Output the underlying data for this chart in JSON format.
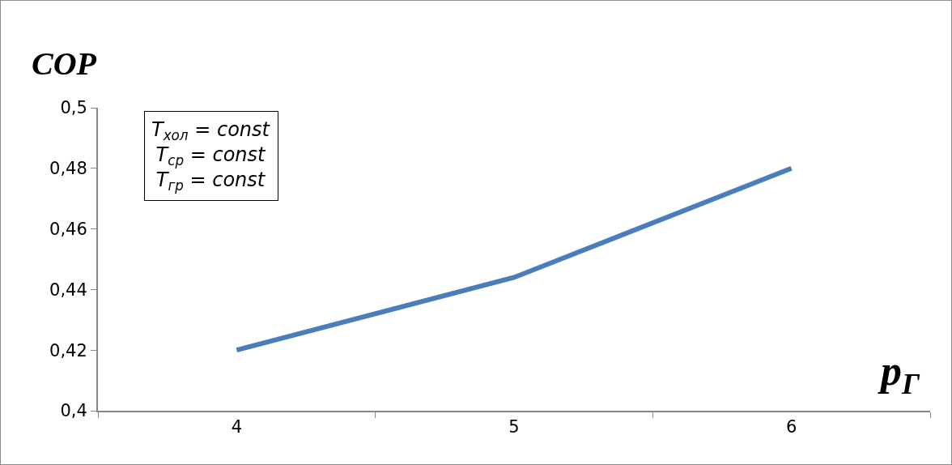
{
  "chart_data": {
    "type": "line",
    "ylabel": "COP",
    "xlabel": "p$_{Г}$",
    "categories": [
      "4",
      "5",
      "6"
    ],
    "series": [
      {
        "color": "#4a7ebb",
        "values": [
          0.42,
          0.444,
          0.48
        ]
      }
    ],
    "ylim": [
      0.4,
      0.5
    ],
    "yticks": [
      {
        "value": 0.4,
        "label": "0,4"
      },
      {
        "value": 0.42,
        "label": "0,42"
      },
      {
        "value": 0.44,
        "label": "0,44"
      },
      {
        "value": 0.46,
        "label": "0,46"
      },
      {
        "value": 0.48,
        "label": "0,48"
      },
      {
        "value": 0.5,
        "label": "0,5"
      }
    ],
    "annotations": [
      "T$_{хол}$ = const",
      "T$_{ср}$ = const",
      "T$_{гр}$ = const"
    ],
    "grid": false,
    "marker": "none",
    "line_style": "solid"
  }
}
